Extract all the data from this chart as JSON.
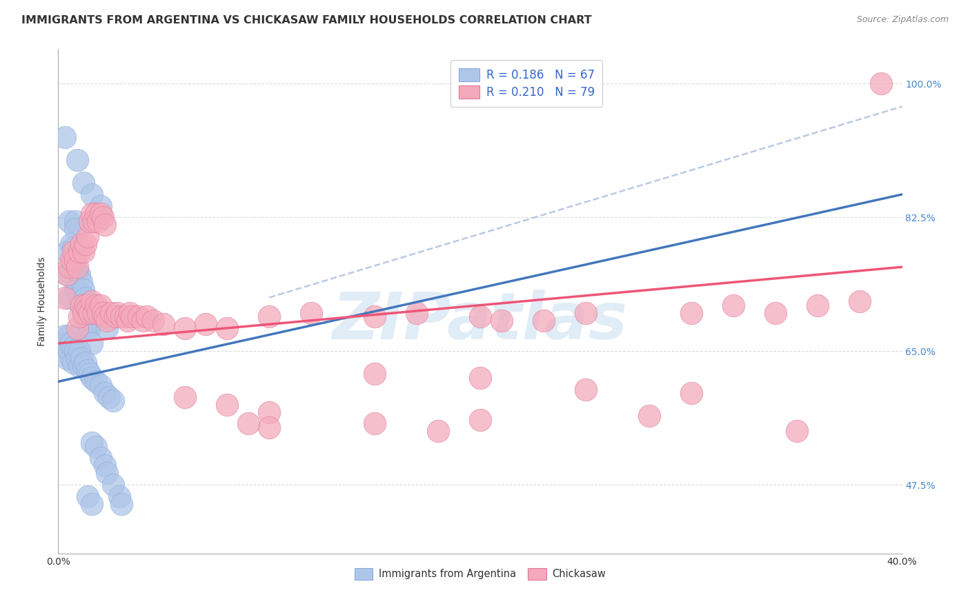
{
  "title": "IMMIGRANTS FROM ARGENTINA VS CHICKASAW FAMILY HOUSEHOLDS CORRELATION CHART",
  "source": "Source: ZipAtlas.com",
  "ylabel": "Family Households",
  "yticks": [
    "47.5%",
    "65.0%",
    "82.5%",
    "100.0%"
  ],
  "ytick_vals": [
    0.475,
    0.65,
    0.825,
    1.0
  ],
  "xlim": [
    0.0,
    0.4
  ],
  "ylim": [
    0.385,
    1.045
  ],
  "color_argentina": "#aec6e8",
  "color_chickasaw": "#f4aabb",
  "color_argentina_line": "#4477bb",
  "color_chickasaw_line": "#ee5577",
  "color_dashed": "#aabbdd",
  "grid_color": "#cccccc",
  "background_color": "#ffffff",
  "title_fontsize": 11.5,
  "axis_fontsize": 10,
  "tick_fontsize": 10,
  "marker_size": 10,
  "arg_x": [
    0.003,
    0.009,
    0.012,
    0.016,
    0.02,
    0.005,
    0.008,
    0.008,
    0.004,
    0.004,
    0.005,
    0.006,
    0.006,
    0.007,
    0.007,
    0.008,
    0.009,
    0.009,
    0.01,
    0.01,
    0.011,
    0.011,
    0.012,
    0.012,
    0.013,
    0.013,
    0.014,
    0.014,
    0.015,
    0.015,
    0.016,
    0.016,
    0.003,
    0.004,
    0.004,
    0.005,
    0.005,
    0.006,
    0.006,
    0.007,
    0.007,
    0.008,
    0.009,
    0.01,
    0.01,
    0.011,
    0.012,
    0.013,
    0.014,
    0.015,
    0.016,
    0.018,
    0.02,
    0.022,
    0.024,
    0.026,
    0.016,
    0.018,
    0.02,
    0.022,
    0.023,
    0.026,
    0.029,
    0.03,
    0.014,
    0.016,
    0.023
  ],
  "arg_y": [
    0.93,
    0.9,
    0.87,
    0.855,
    0.84,
    0.82,
    0.82,
    0.81,
    0.78,
    0.75,
    0.72,
    0.79,
    0.76,
    0.785,
    0.76,
    0.73,
    0.755,
    0.73,
    0.75,
    0.72,
    0.74,
    0.71,
    0.73,
    0.7,
    0.72,
    0.69,
    0.71,
    0.68,
    0.7,
    0.68,
    0.69,
    0.66,
    0.67,
    0.66,
    0.64,
    0.67,
    0.65,
    0.66,
    0.64,
    0.655,
    0.635,
    0.65,
    0.64,
    0.65,
    0.63,
    0.64,
    0.63,
    0.635,
    0.625,
    0.62,
    0.615,
    0.61,
    0.605,
    0.595,
    0.59,
    0.585,
    0.53,
    0.525,
    0.51,
    0.5,
    0.49,
    0.475,
    0.46,
    0.45,
    0.46,
    0.45,
    0.68
  ],
  "chick_x": [
    0.003,
    0.004,
    0.005,
    0.006,
    0.007,
    0.008,
    0.009,
    0.01,
    0.011,
    0.012,
    0.013,
    0.014,
    0.015,
    0.016,
    0.017,
    0.018,
    0.019,
    0.02,
    0.021,
    0.022,
    0.009,
    0.01,
    0.011,
    0.012,
    0.013,
    0.014,
    0.015,
    0.016,
    0.017,
    0.018,
    0.019,
    0.02,
    0.021,
    0.022,
    0.023,
    0.025,
    0.027,
    0.028,
    0.03,
    0.032,
    0.033,
    0.034,
    0.035,
    0.038,
    0.04,
    0.042,
    0.045,
    0.05,
    0.06,
    0.07,
    0.08,
    0.1,
    0.12,
    0.15,
    0.17,
    0.2,
    0.21,
    0.23,
    0.25,
    0.3,
    0.32,
    0.34,
    0.36,
    0.38,
    0.15,
    0.2,
    0.25,
    0.3,
    0.06,
    0.08,
    0.1,
    0.2,
    0.1,
    0.35,
    0.15,
    0.28,
    0.09,
    0.18,
    0.39
  ],
  "chick_y": [
    0.72,
    0.75,
    0.76,
    0.77,
    0.78,
    0.77,
    0.76,
    0.78,
    0.79,
    0.78,
    0.79,
    0.8,
    0.82,
    0.83,
    0.82,
    0.83,
    0.82,
    0.83,
    0.825,
    0.815,
    0.68,
    0.695,
    0.71,
    0.7,
    0.71,
    0.705,
    0.7,
    0.715,
    0.7,
    0.71,
    0.7,
    0.71,
    0.7,
    0.695,
    0.69,
    0.7,
    0.695,
    0.7,
    0.695,
    0.695,
    0.69,
    0.7,
    0.695,
    0.695,
    0.69,
    0.695,
    0.69,
    0.685,
    0.68,
    0.685,
    0.68,
    0.695,
    0.7,
    0.695,
    0.7,
    0.695,
    0.69,
    0.69,
    0.7,
    0.7,
    0.71,
    0.7,
    0.71,
    0.715,
    0.62,
    0.615,
    0.6,
    0.595,
    0.59,
    0.58,
    0.57,
    0.56,
    0.55,
    0.545,
    0.555,
    0.565,
    0.555,
    0.545,
    1.0
  ],
  "arg_line_x0": 0.0,
  "arg_line_x1": 0.4,
  "arg_line_y0": 0.61,
  "arg_line_y1": 0.855,
  "chick_line_x0": 0.0,
  "chick_line_x1": 0.4,
  "chick_line_y0": 0.66,
  "chick_line_y1": 0.76,
  "dash_line_x0": 0.1,
  "dash_line_x1": 0.4,
  "dash_line_y0": 0.72,
  "dash_line_y1": 0.97
}
